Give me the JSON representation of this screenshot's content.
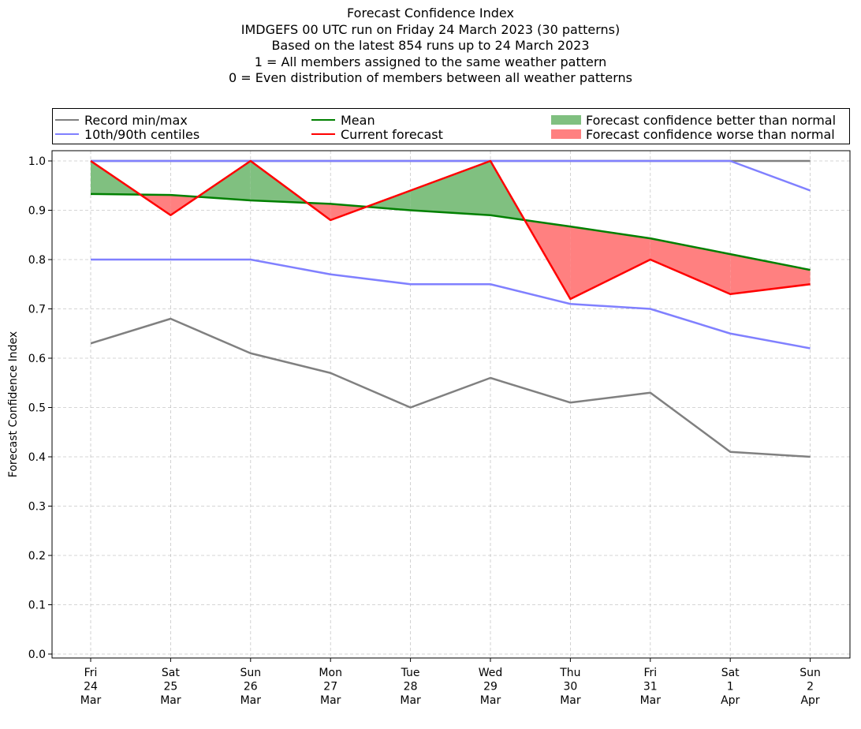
{
  "titles": [
    "Forecast Confidence Index",
    "IMDGEFS 00 UTC run on Friday 24 March 2023 (30 patterns)",
    "Based on the latest 854 runs up to 24 March 2023",
    "1 = All members assigned to the same weather pattern",
    "0 = Even distribution of members between all weather patterns"
  ],
  "legend": {
    "record": "Record min/max",
    "centiles": "10th/90th centiles",
    "mean": "Mean",
    "current": "Current forecast",
    "better": "Forecast confidence better than normal",
    "worse": "Forecast confidence worse than normal"
  },
  "colors": {
    "record": "#808080",
    "centiles": "#8080ff",
    "mean": "#008000",
    "current": "#ff0000",
    "better": "#80c080",
    "worse": "#ff8080"
  },
  "chart_data": {
    "type": "line",
    "ylabel": "Forecast Confidence Index",
    "ylim": [
      0,
      1
    ],
    "yticks": [
      "0.0",
      "0.1",
      "0.2",
      "0.3",
      "0.4",
      "0.5",
      "0.6",
      "0.7",
      "0.8",
      "0.9",
      "1.0"
    ],
    "grid": true,
    "legend_position": "top",
    "categories": [
      [
        "Fri",
        "24",
        "Mar"
      ],
      [
        "Sat",
        "25",
        "Mar"
      ],
      [
        "Sun",
        "26",
        "Mar"
      ],
      [
        "Mon",
        "27",
        "Mar"
      ],
      [
        "Tue",
        "28",
        "Mar"
      ],
      [
        "Wed",
        "29",
        "Mar"
      ],
      [
        "Thu",
        "30",
        "Mar"
      ],
      [
        "Fri",
        "31",
        "Mar"
      ],
      [
        "Sat",
        "1",
        "Apr"
      ],
      [
        "Sun",
        "2",
        "Apr"
      ]
    ],
    "series": [
      {
        "name": "Record min/max",
        "key": "record_max",
        "values": [
          1.0,
          1.0,
          1.0,
          1.0,
          1.0,
          1.0,
          1.0,
          1.0,
          1.0,
          1.0
        ]
      },
      {
        "name": "Record min/max",
        "key": "record_min",
        "values": [
          0.63,
          0.68,
          0.61,
          0.57,
          0.5,
          0.56,
          0.51,
          0.53,
          0.41,
          0.4
        ]
      },
      {
        "name": "10th/90th centiles",
        "key": "p90",
        "values": [
          1.0,
          1.0,
          1.0,
          1.0,
          1.0,
          1.0,
          1.0,
          1.0,
          1.0,
          0.94
        ]
      },
      {
        "name": "10th/90th centiles",
        "key": "p10",
        "values": [
          0.8,
          0.8,
          0.8,
          0.77,
          0.75,
          0.75,
          0.71,
          0.7,
          0.65,
          0.62
        ]
      },
      {
        "name": "Mean",
        "key": "mean",
        "values": [
          0.933,
          0.931,
          0.92,
          0.913,
          0.9,
          0.89,
          0.867,
          0.843,
          0.811,
          0.779
        ]
      },
      {
        "name": "Current forecast",
        "key": "current",
        "values": [
          1.0,
          0.89,
          1.0,
          0.88,
          0.94,
          1.0,
          0.72,
          0.8,
          0.73,
          0.75
        ]
      }
    ]
  }
}
